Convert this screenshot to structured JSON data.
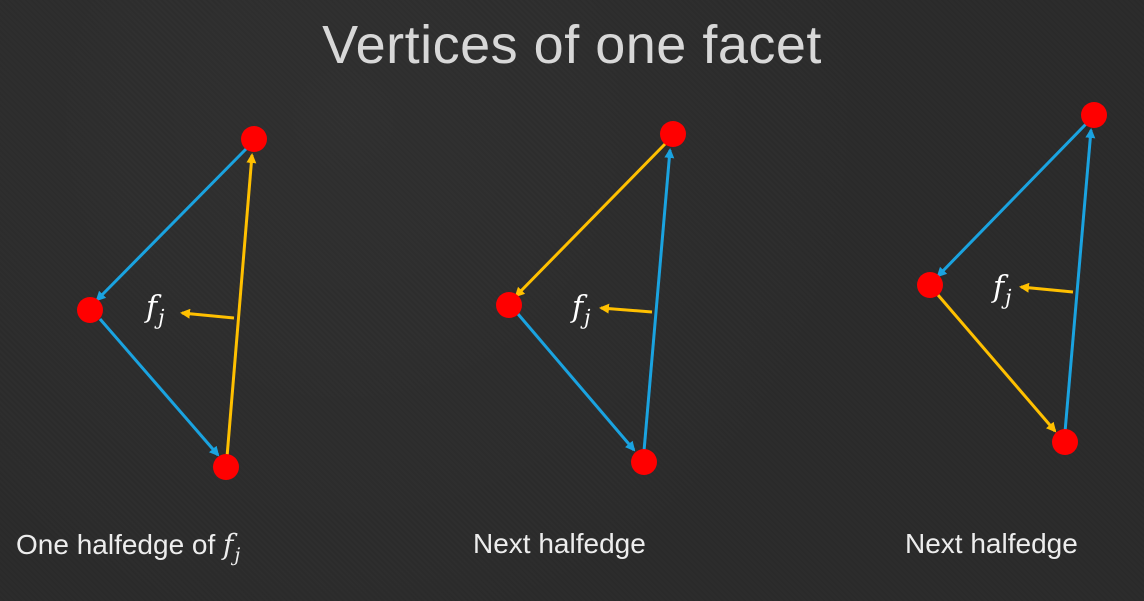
{
  "title": "Vertices of one facet",
  "facet_symbol": {
    "base": "f",
    "subscript": "j"
  },
  "colors": {
    "background": "#2a2a2a",
    "title": "#d8d8d8",
    "vertex": "#ff0000",
    "halfedge_current": "#ffc000",
    "halfedge_other": "#1aa3e0",
    "caption": "#ededed"
  },
  "panels": [
    {
      "caption_text": "One halfedge of ",
      "caption_has_symbol": true,
      "current_halfedge": "bottom-to-top"
    },
    {
      "caption_text": "Next halfedge",
      "caption_has_symbol": false,
      "current_halfedge": "top-to-left"
    },
    {
      "caption_text": "Next halfedge",
      "caption_has_symbol": false,
      "current_halfedge": "left-to-bottom"
    }
  ]
}
